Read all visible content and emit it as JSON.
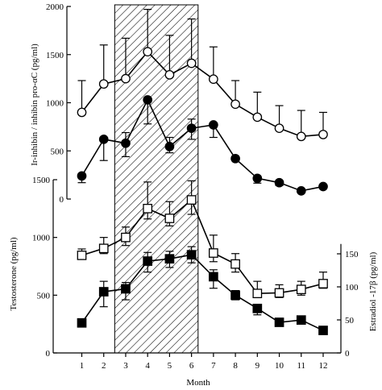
{
  "chart_data": {
    "type": "line",
    "x_axis": {
      "label": "Month",
      "ticks": [
        1,
        2,
        3,
        4,
        5,
        6,
        7,
        8,
        9,
        10,
        11,
        12
      ],
      "range": [
        0.5,
        12.5
      ]
    },
    "shaded_region": {
      "from": 2.5,
      "to": 6.3,
      "pattern": "diagonal-hatch"
    },
    "panels": [
      {
        "name": "top",
        "ylabel": "Ir-inhibin / inhibin pro-αC (pg/ml)",
        "ylim": [
          0,
          2000
        ],
        "yticks": [
          0,
          500,
          1000,
          1500,
          2000
        ],
        "series": [
          {
            "marker": "open-circle",
            "x": [
              1,
              2,
              3,
              4,
              5,
              6,
              7,
              8,
              9,
              10,
              11,
              12
            ],
            "y": [
              900,
              1195,
              1250,
              1530,
              1290,
              1410,
              1245,
              985,
              850,
              735,
              650,
              670
            ],
            "error_upper": [
              1230,
              1600,
              1670,
              1970,
              1700,
              1870,
              1580,
              1230,
              1110,
              970,
              920,
              900
            ]
          },
          {
            "marker": "filled-circle",
            "x": [
              1,
              2,
              3,
              4,
              5,
              6,
              7,
              8,
              9,
              10,
              11,
              12
            ],
            "y": [
              240,
              620,
              580,
              1030,
              545,
              735,
              770,
              420,
              215,
              170,
              85,
              130
            ],
            "error_upper": [
              240,
              620,
              690,
              1030,
              640,
              830,
              770,
              420,
              215,
              170,
              85,
              130
            ],
            "error_lower": [
              170,
              400,
              440,
              780,
              480,
              620,
              640,
              400,
              165,
              140,
              85,
              130
            ]
          }
        ]
      },
      {
        "name": "bottom",
        "ylabel_left": "Testosterone (pg/ml)",
        "ylim_left": [
          0,
          1500
        ],
        "yticks_left": [
          0,
          500,
          1000,
          1500
        ],
        "ylabel_right": "Estradiol -17β (pg/ml)",
        "ylim_right": [
          0,
          170
        ],
        "yticks_right": [
          0,
          50,
          100,
          150
        ],
        "series": [
          {
            "marker": "open-square",
            "axis": "left",
            "x": [
              1,
              2,
              3,
              4,
              5,
              6,
              7,
              8,
              9,
              10,
              11,
              12
            ],
            "y": [
              845,
              905,
              1000,
              1250,
              1165,
              1325,
              865,
              770,
              515,
              520,
              550,
              600
            ],
            "error_upper": [
              900,
              1000,
              1090,
              1480,
              1310,
              1490,
              1020,
              860,
              620,
              590,
              620,
              700
            ],
            "error_lower": [
              810,
              860,
              930,
              1160,
              1100,
              1200,
              790,
              700,
              490,
              480,
              500,
              560
            ]
          },
          {
            "marker": "filled-square",
            "axis": "left",
            "x": [
              1,
              2,
              3,
              4,
              5,
              6,
              7,
              8,
              9,
              10,
              11,
              12
            ],
            "y": [
              260,
              530,
              555,
              795,
              815,
              850,
              660,
              500,
              385,
              265,
              285,
              195
            ],
            "error_upper": [
              260,
              620,
              610,
              870,
              880,
              920,
              720,
              540,
              420,
              300,
              320,
              230
            ],
            "error_lower": [
              230,
              400,
              460,
              700,
              740,
              780,
              560,
              460,
              330,
              240,
              250,
              160
            ]
          }
        ]
      }
    ],
    "tick_labels": {
      "top_y": [
        "0",
        "500",
        "1000",
        "1500",
        "2000"
      ],
      "bottom_left_y": [
        "0",
        "500",
        "1000",
        "1500"
      ],
      "bottom_right_y": [
        "0",
        "50",
        "100",
        "150"
      ],
      "x": [
        "1",
        "2",
        "3",
        "4",
        "5",
        "6",
        "7",
        "8",
        "9",
        "10",
        "11",
        "12"
      ]
    }
  }
}
